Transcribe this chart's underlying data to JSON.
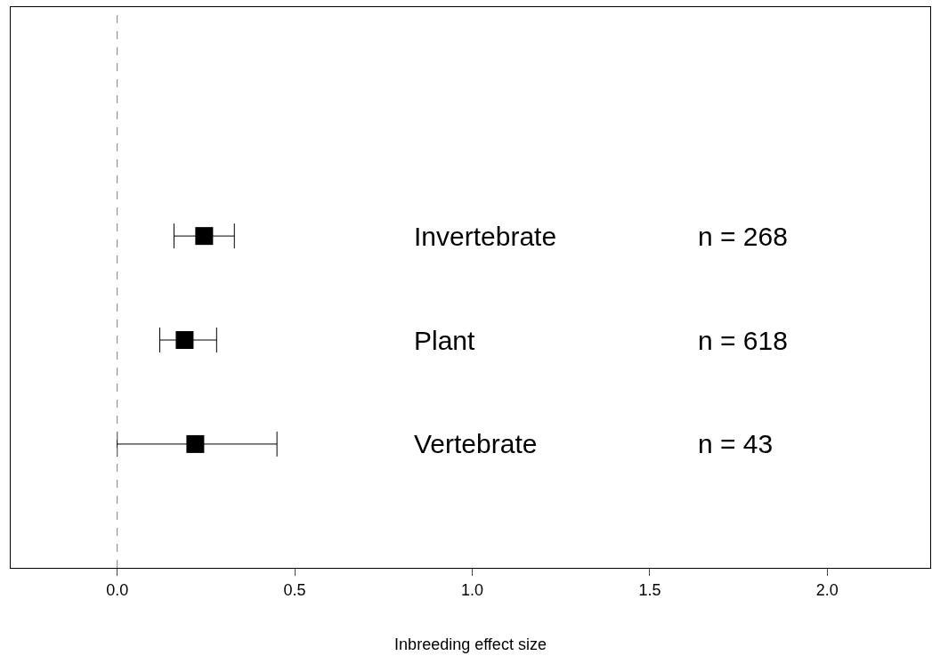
{
  "chart_data": {
    "type": "scatter",
    "orientation": "horizontal",
    "xlabel": "Inbreeding effect size",
    "categories": [
      "Invertebrate",
      "Plant",
      "Vertebrate"
    ],
    "values": [
      0.245,
      0.19,
      0.22
    ],
    "errors": [
      [
        0.16,
        0.33
      ],
      [
        0.12,
        0.28
      ],
      [
        0.0,
        0.45
      ]
    ],
    "color": "#000000",
    "marker": "square",
    "xlim": [
      -0.3,
      2.29
    ],
    "xticks": [
      {
        "value": 0,
        "label": "0.0"
      },
      {
        "value": 0.5,
        "label": "0.5"
      },
      {
        "value": 1,
        "label": "1.0"
      },
      {
        "value": 1.5,
        "label": "1.5"
      },
      {
        "value": 2,
        "label": "2.0"
      }
    ],
    "tick_labels": "x",
    "ref_lines": [
      {
        "axis": "x",
        "value": 0,
        "color": "#808080",
        "line_style": "dashed"
      }
    ],
    "annotations": [
      "n = 268",
      "n = 618",
      "n = 43"
    ],
    "legend": false
  }
}
